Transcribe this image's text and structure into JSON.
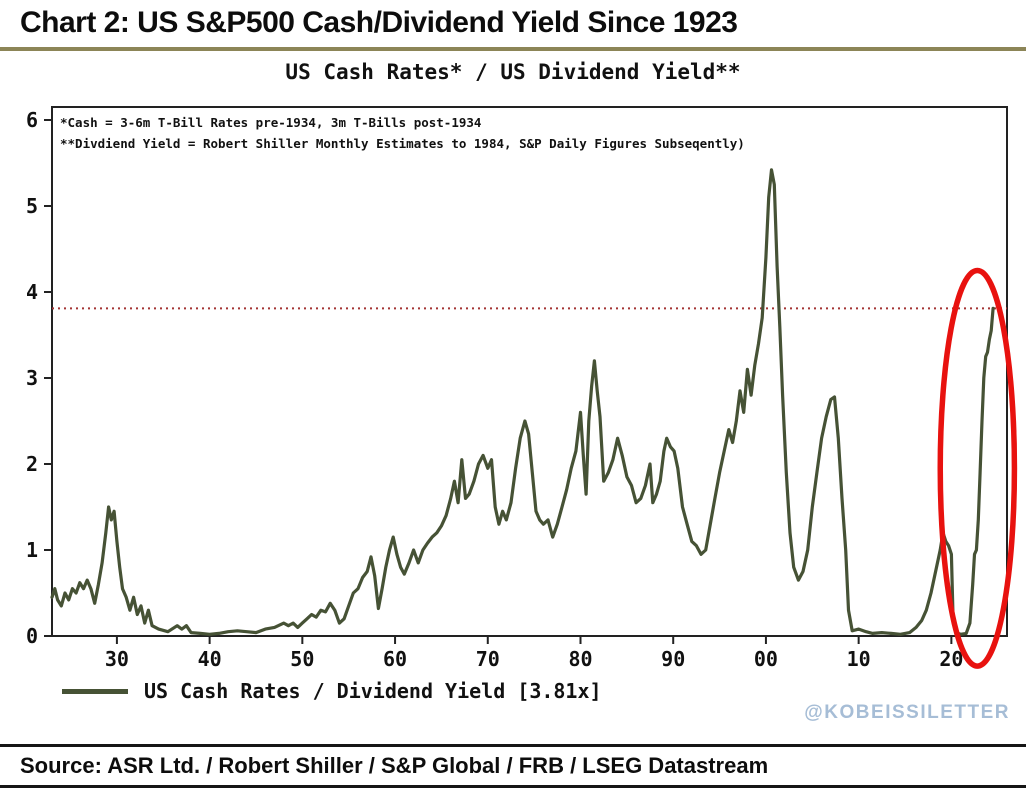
{
  "header": {
    "title": "Chart 2: US S&P500 Cash/Dividend Yield Since 1923",
    "underline_color": "#8c8557"
  },
  "footer": {
    "source": "Source: ASR Ltd. / Robert Shiller / S&P Global / FRB / LSEG Datastream",
    "watermark": "@KOBEISSILETTER",
    "watermark_color": "#a6bdd6"
  },
  "chart_data": {
    "type": "line",
    "title": "US Cash Rates* / US Dividend Yield**",
    "footnote1": "*Cash = 3-6m T-Bill Rates pre-1934, 3m T-Bills post-1934",
    "footnote2": "**Divdiend Yield = Robert Shiller Monthly Estimates to 1984, S&P Daily Figures Subseqently)",
    "legend_label": "US Cash Rates / Dividend Yield [3.81x]",
    "x_range": [
      1923,
      2026
    ],
    "ylim": [
      0,
      6
    ],
    "grid": false,
    "legend_position": "bottom-left",
    "y_ticks": [
      0,
      1,
      2,
      3,
      4,
      5,
      6
    ],
    "x_ticks": [
      {
        "pos": 1930,
        "label": "30"
      },
      {
        "pos": 1940,
        "label": "40"
      },
      {
        "pos": 1950,
        "label": "50"
      },
      {
        "pos": 1960,
        "label": "60"
      },
      {
        "pos": 1970,
        "label": "70"
      },
      {
        "pos": 1980,
        "label": "80"
      },
      {
        "pos": 1990,
        "label": "90"
      },
      {
        "pos": 2000,
        "label": "00"
      },
      {
        "pos": 2010,
        "label": "10"
      },
      {
        "pos": 2020,
        "label": "20"
      }
    ],
    "reference_line": {
      "value": 3.81,
      "color": "#a33333",
      "style": "dotted"
    },
    "annotation_ellipse": {
      "cx_year": 2022.8,
      "cy_value": 1.95,
      "rx_years": 4.0,
      "ry_values": 2.3,
      "color": "#e8120f"
    },
    "series": [
      {
        "name": "US Cash Rates / Dividend Yield",
        "color": "#465235",
        "points": [
          [
            1923.0,
            0.45
          ],
          [
            1923.3,
            0.55
          ],
          [
            1923.6,
            0.42
          ],
          [
            1924.0,
            0.35
          ],
          [
            1924.4,
            0.5
          ],
          [
            1924.8,
            0.42
          ],
          [
            1925.2,
            0.55
          ],
          [
            1925.6,
            0.5
          ],
          [
            1926.0,
            0.62
          ],
          [
            1926.4,
            0.55
          ],
          [
            1926.8,
            0.65
          ],
          [
            1927.2,
            0.55
          ],
          [
            1927.6,
            0.38
          ],
          [
            1928.0,
            0.6
          ],
          [
            1928.4,
            0.85
          ],
          [
            1928.8,
            1.2
          ],
          [
            1929.1,
            1.5
          ],
          [
            1929.4,
            1.35
          ],
          [
            1929.7,
            1.45
          ],
          [
            1930.0,
            1.1
          ],
          [
            1930.3,
            0.8
          ],
          [
            1930.6,
            0.55
          ],
          [
            1931.0,
            0.45
          ],
          [
            1931.4,
            0.3
          ],
          [
            1931.8,
            0.45
          ],
          [
            1932.2,
            0.25
          ],
          [
            1932.6,
            0.35
          ],
          [
            1933.0,
            0.15
          ],
          [
            1933.4,
            0.3
          ],
          [
            1933.8,
            0.12
          ],
          [
            1934.5,
            0.08
          ],
          [
            1935.5,
            0.05
          ],
          [
            1936.5,
            0.12
          ],
          [
            1937.0,
            0.08
          ],
          [
            1937.5,
            0.12
          ],
          [
            1938.0,
            0.04
          ],
          [
            1939.0,
            0.03
          ],
          [
            1940.0,
            0.02
          ],
          [
            1941.0,
            0.03
          ],
          [
            1942.0,
            0.05
          ],
          [
            1943.0,
            0.06
          ],
          [
            1944.0,
            0.05
          ],
          [
            1945.0,
            0.04
          ],
          [
            1946.0,
            0.08
          ],
          [
            1947.0,
            0.1
          ],
          [
            1948.0,
            0.15
          ],
          [
            1948.5,
            0.12
          ],
          [
            1949.0,
            0.15
          ],
          [
            1949.5,
            0.1
          ],
          [
            1950.0,
            0.15
          ],
          [
            1950.5,
            0.2
          ],
          [
            1951.0,
            0.25
          ],
          [
            1951.5,
            0.22
          ],
          [
            1952.0,
            0.3
          ],
          [
            1952.5,
            0.28
          ],
          [
            1953.0,
            0.38
          ],
          [
            1953.5,
            0.3
          ],
          [
            1954.0,
            0.15
          ],
          [
            1954.5,
            0.2
          ],
          [
            1955.0,
            0.35
          ],
          [
            1955.5,
            0.5
          ],
          [
            1956.0,
            0.55
          ],
          [
            1956.5,
            0.68
          ],
          [
            1957.0,
            0.75
          ],
          [
            1957.4,
            0.92
          ],
          [
            1957.8,
            0.7
          ],
          [
            1958.2,
            0.32
          ],
          [
            1958.6,
            0.55
          ],
          [
            1959.0,
            0.8
          ],
          [
            1959.4,
            1.0
          ],
          [
            1959.8,
            1.15
          ],
          [
            1960.2,
            0.95
          ],
          [
            1960.6,
            0.8
          ],
          [
            1961.0,
            0.72
          ],
          [
            1961.5,
            0.85
          ],
          [
            1962.0,
            1.0
          ],
          [
            1962.5,
            0.85
          ],
          [
            1963.0,
            1.0
          ],
          [
            1963.5,
            1.08
          ],
          [
            1964.0,
            1.15
          ],
          [
            1964.5,
            1.2
          ],
          [
            1965.0,
            1.28
          ],
          [
            1965.5,
            1.4
          ],
          [
            1966.0,
            1.6
          ],
          [
            1966.4,
            1.8
          ],
          [
            1966.8,
            1.55
          ],
          [
            1967.2,
            2.05
          ],
          [
            1967.6,
            1.6
          ],
          [
            1968.0,
            1.65
          ],
          [
            1968.5,
            1.8
          ],
          [
            1969.0,
            2.0
          ],
          [
            1969.5,
            2.1
          ],
          [
            1970.0,
            1.95
          ],
          [
            1970.4,
            2.05
          ],
          [
            1970.8,
            1.5
          ],
          [
            1971.2,
            1.3
          ],
          [
            1971.6,
            1.45
          ],
          [
            1972.0,
            1.35
          ],
          [
            1972.5,
            1.55
          ],
          [
            1973.0,
            1.95
          ],
          [
            1973.5,
            2.3
          ],
          [
            1974.0,
            2.5
          ],
          [
            1974.4,
            2.35
          ],
          [
            1974.8,
            1.9
          ],
          [
            1975.2,
            1.45
          ],
          [
            1975.6,
            1.35
          ],
          [
            1976.0,
            1.3
          ],
          [
            1976.5,
            1.35
          ],
          [
            1977.0,
            1.15
          ],
          [
            1977.5,
            1.3
          ],
          [
            1978.0,
            1.5
          ],
          [
            1978.5,
            1.7
          ],
          [
            1979.0,
            1.95
          ],
          [
            1979.5,
            2.15
          ],
          [
            1980.0,
            2.6
          ],
          [
            1980.3,
            2.1
          ],
          [
            1980.6,
            1.65
          ],
          [
            1980.9,
            2.5
          ],
          [
            1981.2,
            2.9
          ],
          [
            1981.5,
            3.2
          ],
          [
            1981.8,
            2.85
          ],
          [
            1982.1,
            2.55
          ],
          [
            1982.5,
            1.8
          ],
          [
            1983.0,
            1.9
          ],
          [
            1983.5,
            2.05
          ],
          [
            1984.0,
            2.3
          ],
          [
            1984.5,
            2.1
          ],
          [
            1985.0,
            1.85
          ],
          [
            1985.5,
            1.75
          ],
          [
            1986.0,
            1.55
          ],
          [
            1986.5,
            1.6
          ],
          [
            1987.0,
            1.75
          ],
          [
            1987.5,
            2.0
          ],
          [
            1987.8,
            1.55
          ],
          [
            1988.2,
            1.65
          ],
          [
            1988.6,
            1.8
          ],
          [
            1989.0,
            2.15
          ],
          [
            1989.3,
            2.3
          ],
          [
            1989.7,
            2.2
          ],
          [
            1990.1,
            2.15
          ],
          [
            1990.5,
            1.95
          ],
          [
            1991.0,
            1.5
          ],
          [
            1991.5,
            1.3
          ],
          [
            1992.0,
            1.1
          ],
          [
            1992.5,
            1.05
          ],
          [
            1993.0,
            0.95
          ],
          [
            1993.5,
            1.0
          ],
          [
            1994.0,
            1.3
          ],
          [
            1994.5,
            1.6
          ],
          [
            1995.0,
            1.9
          ],
          [
            1995.5,
            2.15
          ],
          [
            1996.0,
            2.4
          ],
          [
            1996.4,
            2.25
          ],
          [
            1996.8,
            2.5
          ],
          [
            1997.2,
            2.85
          ],
          [
            1997.6,
            2.6
          ],
          [
            1998.0,
            3.1
          ],
          [
            1998.4,
            2.8
          ],
          [
            1998.8,
            3.15
          ],
          [
            1999.2,
            3.4
          ],
          [
            1999.6,
            3.7
          ],
          [
            2000.0,
            4.4
          ],
          [
            2000.3,
            5.1
          ],
          [
            2000.6,
            5.42
          ],
          [
            2000.9,
            5.25
          ],
          [
            2001.2,
            4.3
          ],
          [
            2001.5,
            3.6
          ],
          [
            2001.8,
            2.8
          ],
          [
            2002.2,
            1.9
          ],
          [
            2002.6,
            1.2
          ],
          [
            2003.0,
            0.8
          ],
          [
            2003.5,
            0.65
          ],
          [
            2004.0,
            0.75
          ],
          [
            2004.5,
            1.0
          ],
          [
            2005.0,
            1.5
          ],
          [
            2005.5,
            1.9
          ],
          [
            2006.0,
            2.3
          ],
          [
            2006.5,
            2.55
          ],
          [
            2007.0,
            2.75
          ],
          [
            2007.4,
            2.78
          ],
          [
            2007.8,
            2.3
          ],
          [
            2008.2,
            1.6
          ],
          [
            2008.6,
            1.0
          ],
          [
            2008.9,
            0.3
          ],
          [
            2009.3,
            0.06
          ],
          [
            2010.0,
            0.08
          ],
          [
            2010.8,
            0.05
          ],
          [
            2011.5,
            0.03
          ],
          [
            2012.5,
            0.04
          ],
          [
            2013.5,
            0.03
          ],
          [
            2014.5,
            0.02
          ],
          [
            2015.5,
            0.04
          ],
          [
            2016.2,
            0.1
          ],
          [
            2016.8,
            0.18
          ],
          [
            2017.3,
            0.3
          ],
          [
            2017.8,
            0.5
          ],
          [
            2018.3,
            0.75
          ],
          [
            2018.8,
            1.0
          ],
          [
            2019.1,
            1.2
          ],
          [
            2019.4,
            1.1
          ],
          [
            2019.7,
            1.05
          ],
          [
            2020.0,
            0.95
          ],
          [
            2020.2,
            0.15
          ],
          [
            2020.5,
            0.04
          ],
          [
            2021.0,
            0.02
          ],
          [
            2021.6,
            0.03
          ],
          [
            2022.0,
            0.15
          ],
          [
            2022.3,
            0.6
          ],
          [
            2022.5,
            0.95
          ],
          [
            2022.7,
            1.0
          ],
          [
            2022.9,
            1.35
          ],
          [
            2023.1,
            1.9
          ],
          [
            2023.3,
            2.5
          ],
          [
            2023.5,
            3.0
          ],
          [
            2023.7,
            3.25
          ],
          [
            2023.9,
            3.3
          ],
          [
            2024.1,
            3.45
          ],
          [
            2024.3,
            3.55
          ],
          [
            2024.5,
            3.81
          ]
        ]
      }
    ]
  }
}
